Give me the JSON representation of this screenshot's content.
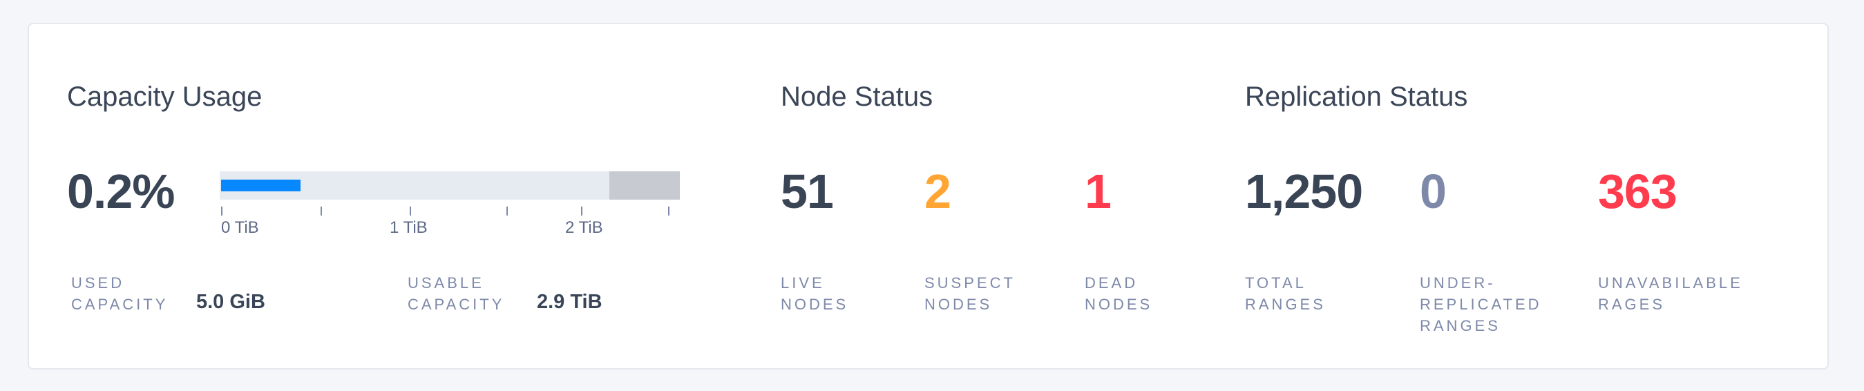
{
  "capacity": {
    "title": "Capacity Usage",
    "percent": "0.2%",
    "used_fraction": 0.002,
    "axis_labels": [
      "0 TiB",
      "1 TiB",
      "2 TiB"
    ],
    "used_label": "USED CAPACITY",
    "used_value": "5.0 GiB",
    "usable_label": "USABLE CAPACITY",
    "usable_value": "2.9 TiB",
    "colors": {
      "used": "#0788ff",
      "track": "#e6eaf1",
      "reserved": "#c8cad2"
    }
  },
  "nodes": {
    "title": "Node Status",
    "live": {
      "value": "51",
      "label": "LIVE NODES",
      "color": "#394455"
    },
    "suspect": {
      "value": "2",
      "label": "SUSPECT NODES",
      "color": "#ffa533"
    },
    "dead": {
      "value": "1",
      "label": "DEAD NODES",
      "color": "#ff3b4e"
    }
  },
  "replication": {
    "title": "Replication Status",
    "total": {
      "value": "1,250",
      "label": "TOTAL RANGES",
      "color": "#394455"
    },
    "under": {
      "value": "0",
      "label": "UNDER-REPLICATED RANGES",
      "color": "#7e89a9"
    },
    "unavailable": {
      "value": "363",
      "label": "UNAVABILABLE RAGES",
      "color": "#ff3b4e"
    }
  }
}
